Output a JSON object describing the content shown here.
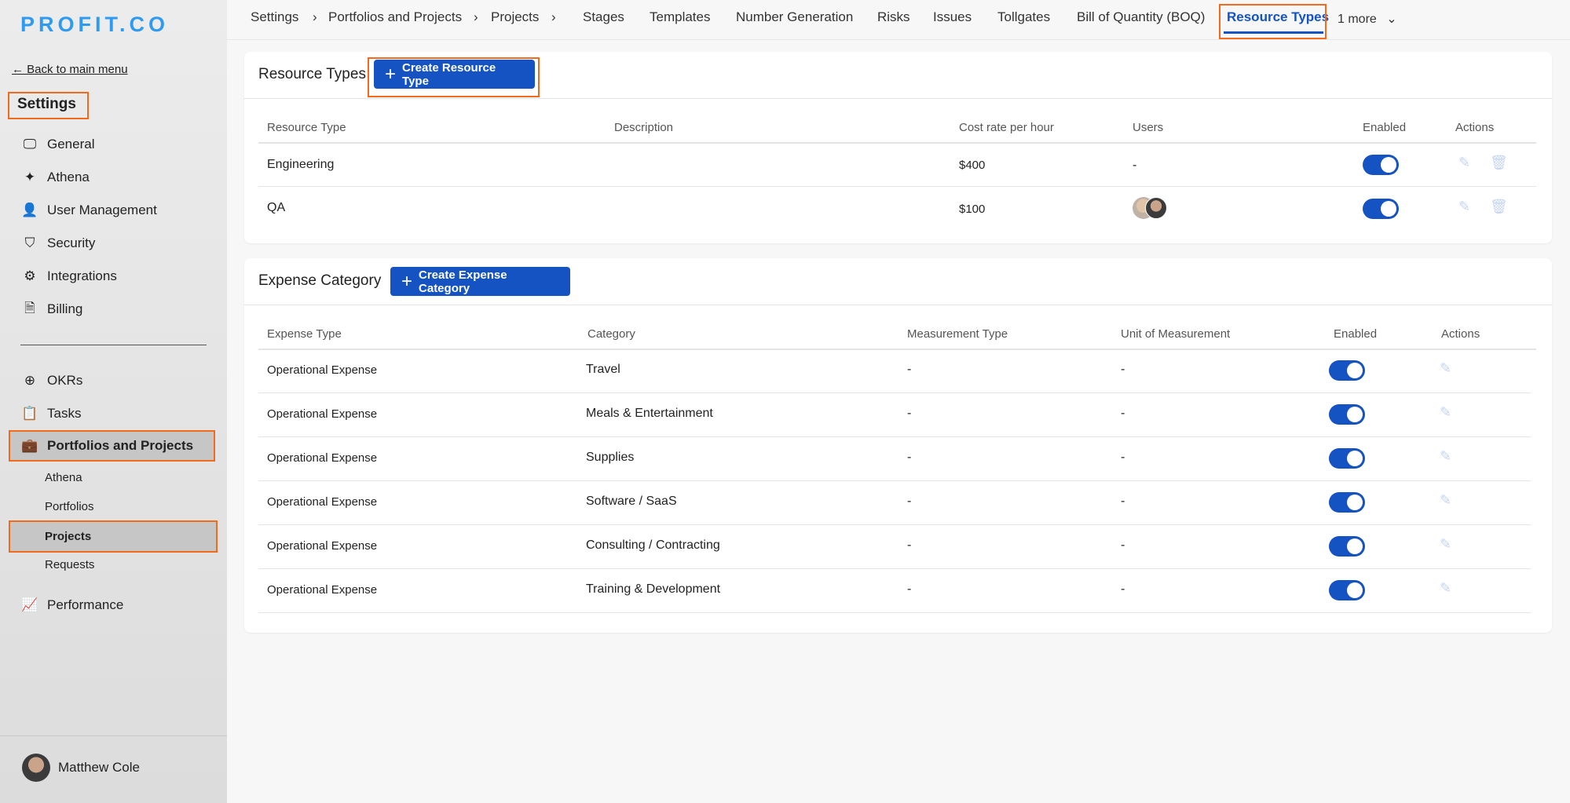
{
  "brand": "PROFIT.CO",
  "sidebar": {
    "back": "← Back to main menu",
    "title": "Settings",
    "items": [
      {
        "label": "General",
        "icon": "monitor-icon"
      },
      {
        "label": "Athena",
        "icon": "sparkle-icon"
      },
      {
        "label": "User Management",
        "icon": "user-icon"
      },
      {
        "label": "Security",
        "icon": "shield-icon"
      },
      {
        "label": "Integrations",
        "icon": "chip-icon"
      },
      {
        "label": "Billing",
        "icon": "receipt-icon"
      }
    ],
    "items2": [
      {
        "label": "OKRs",
        "icon": "target-icon"
      },
      {
        "label": "Tasks",
        "icon": "clipboard-icon"
      },
      {
        "label": "Portfolios and Projects",
        "icon": "briefcase-icon"
      }
    ],
    "subitems": [
      "Athena",
      "Portfolios",
      "Projects",
      "Requests"
    ],
    "performance": {
      "label": "Performance",
      "icon": "chart-icon"
    },
    "user": "Matthew Cole"
  },
  "breadcrumb": [
    "Settings",
    "Portfolios and Projects",
    "Projects"
  ],
  "tabs": [
    "Stages",
    "Templates",
    "Number Generation",
    "Risks",
    "Issues",
    "Tollgates",
    "Bill of Quantity (BOQ)",
    "Resource Types"
  ],
  "more": "1 more",
  "accent": "#1553c2",
  "resource": {
    "title": "Resource Types",
    "button": "Create Resource Type",
    "headers": [
      "Resource Type",
      "Description",
      "Cost rate per hour",
      "Users",
      "Enabled",
      "Actions"
    ],
    "rows": [
      {
        "type": "Engineering",
        "description": "",
        "cost": "$400",
        "users": "-",
        "enabled": true
      },
      {
        "type": "QA",
        "description": "",
        "cost": "$100",
        "users": "",
        "enabled": true
      }
    ]
  },
  "expense": {
    "title": "Expense Category",
    "button": "Create Expense Category",
    "headers": [
      "Expense Type",
      "Category",
      "Measurement Type",
      "Unit of Measurement",
      "Enabled",
      "Actions"
    ],
    "rows": [
      {
        "type": "Operational Expense",
        "category": "Travel",
        "measurement": "-",
        "unit": "-",
        "enabled": true
      },
      {
        "type": "Operational Expense",
        "category": "Meals & Entertainment",
        "measurement": "-",
        "unit": "-",
        "enabled": true
      },
      {
        "type": "Operational Expense",
        "category": "Supplies",
        "measurement": "-",
        "unit": "-",
        "enabled": true
      },
      {
        "type": "Operational Expense",
        "category": "Software / SaaS",
        "measurement": "-",
        "unit": "-",
        "enabled": true
      },
      {
        "type": "Operational Expense",
        "category": "Consulting / Contracting",
        "measurement": "-",
        "unit": "-",
        "enabled": true
      },
      {
        "type": "Operational Expense",
        "category": "Training & Development",
        "measurement": "-",
        "unit": "-",
        "enabled": true
      }
    ]
  }
}
